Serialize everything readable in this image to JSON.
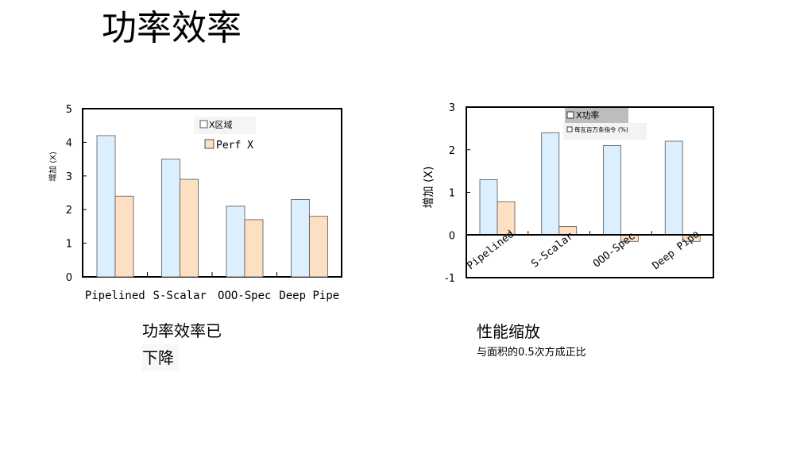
{
  "slide_title": "功率效率",
  "captions": {
    "left_line1": "功率效率已",
    "left_line2": "下降",
    "right_title": "性能缩放",
    "right_sub": "与面积的0.5次方成正比"
  },
  "colors": {
    "series_blue": "#dcefff",
    "series_orange": "#fde0c1",
    "legend_gray": "#bdbdbd"
  },
  "chart_data": [
    {
      "type": "bar",
      "categories": [
        "Pipelined",
        "S-Scalar",
        "OOO-Spec",
        "Deep Pipe"
      ],
      "series": [
        {
          "name": "X区域",
          "values": [
            4.2,
            3.5,
            2.1,
            2.3
          ]
        },
        {
          "name": "Perf X",
          "values": [
            2.4,
            2.9,
            1.7,
            1.8
          ]
        }
      ],
      "ylabel": "增加 (X)",
      "ylim": [
        0,
        5
      ],
      "yticks": [
        "0",
        "1",
        "2",
        "3",
        "4",
        "5"
      ],
      "legend": "top-center"
    },
    {
      "type": "bar",
      "categories": [
        "Pipelined",
        "S-Scalar",
        "OOO-Spec",
        "Deep Pipe"
      ],
      "series": [
        {
          "name": "X功率",
          "values": [
            1.3,
            2.4,
            2.1,
            2.2
          ]
        },
        {
          "name": "每瓦百万条指令 (%)",
          "values": [
            0.78,
            0.2,
            -0.15,
            -0.15
          ]
        }
      ],
      "ylabel": "增加 (X)",
      "ylim": [
        -1,
        3
      ],
      "yticks": [
        "-1",
        "0",
        "1",
        "2",
        "3"
      ],
      "legend": "top-center"
    }
  ]
}
